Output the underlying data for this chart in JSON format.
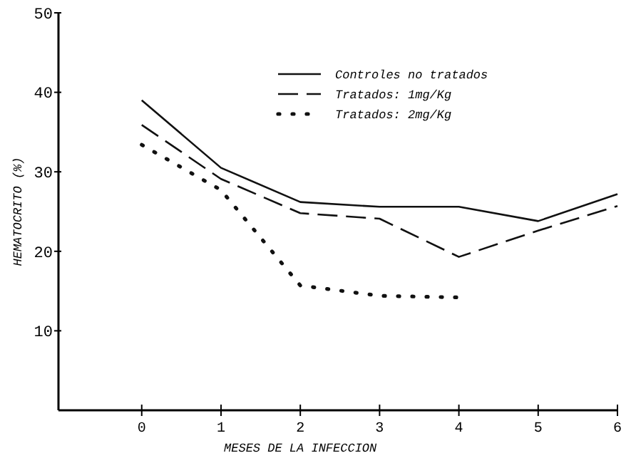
{
  "chart_data": {
    "type": "line",
    "xlabel": "MESES DE LA INFECCION",
    "ylabel": "HEMATOCRITO (%)",
    "x": [
      0,
      1,
      2,
      3,
      4,
      5,
      6
    ],
    "xlim": [
      -1.05,
      6
    ],
    "xticks": [
      0,
      1,
      2,
      3,
      4,
      5,
      6
    ],
    "ylim": [
      0,
      50
    ],
    "yticks": [
      10,
      20,
      30,
      40,
      50
    ],
    "grid": false,
    "legend": "top right",
    "marker": "none",
    "series": [
      {
        "name": "Controles no tratados",
        "color": "#111111",
        "line_style": "solid",
        "values": [
          39,
          30.5,
          26.2,
          25.6,
          25.6,
          23.8,
          27.2
        ]
      },
      {
        "name": "Tratados:  1mg/Kg",
        "color": "#111111",
        "line_style": "dashed",
        "values": [
          35.9,
          29.1,
          24.8,
          24.1,
          19.3,
          22.6,
          25.7
        ]
      },
      {
        "name": "Tratados:  2mg/Kg",
        "color": "#111111",
        "line_style": "dotted",
        "values": [
          33.4,
          27.7,
          15.7,
          14.4,
          14.2,
          null,
          null
        ]
      }
    ]
  }
}
